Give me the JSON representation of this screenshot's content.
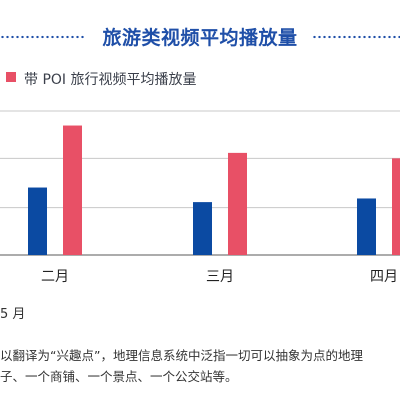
{
  "header": {
    "title": "旅游类视频平均播放量"
  },
  "colors": {
    "brand_blue": "#1f4fa8",
    "series_blue": "#0b4aa2",
    "series_red": "#e85066",
    "grid": "#c8c8c8",
    "baseline": "#7a7a7a"
  },
  "chart_data": {
    "type": "bar",
    "title": "旅游类视频平均播放量",
    "categories": [
      "二月",
      "三月",
      "四月"
    ],
    "series": [
      {
        "values": [
          3.7,
          2.9,
          3.1
        ],
        "color": "#0b4aa2"
      },
      {
        "name": "带 POI 旅行视频平均播放量",
        "values": [
          7.1,
          5.6,
          5.3
        ],
        "color": "#e85066"
      }
    ],
    "ylim": [
      0,
      8.5
    ],
    "gridlines": [
      2.6,
      5.3,
      7.9
    ],
    "grid": true,
    "legend_position": "top-left",
    "xlabel": "",
    "ylabel": ""
  },
  "footnotes": {
    "date": "5 月",
    "line1": "以翻译为“兴趣点”，地理信息系统中泛指一切可以抽象为点的地理",
    "line2": "子、一个商铺、一个景点、一个公交站等。"
  }
}
